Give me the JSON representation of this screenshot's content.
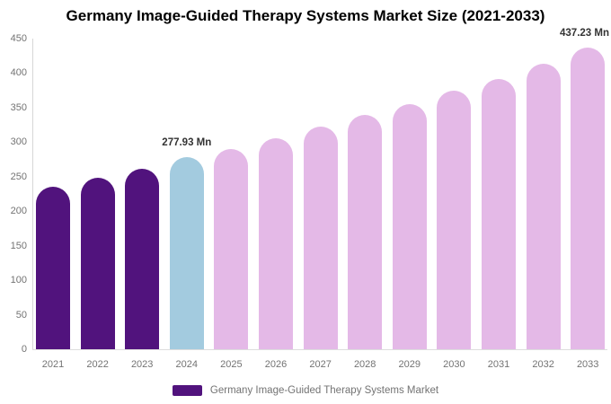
{
  "page": {
    "background_color": "#ffffff"
  },
  "chart_data": {
    "type": "bar",
    "title": "Germany Image-Guided Therapy Systems Market Size (2021-2033)",
    "categories": [
      "2021",
      "2022",
      "2023",
      "2024",
      "2025",
      "2026",
      "2027",
      "2028",
      "2029",
      "2030",
      "2031",
      "2032",
      "2033"
    ],
    "series": [
      {
        "name": "Germany Image-Guided Therapy Systems Market",
        "values": [
          235,
          248,
          261,
          277.93,
          290,
          306,
          322,
          339,
          355,
          374,
          392,
          413,
          437.23
        ]
      }
    ],
    "unit": "Mn",
    "xlabel": "",
    "ylabel": "",
    "ylim": [
      0,
      450
    ],
    "ytick_step": 50,
    "yticks": [
      "0",
      "50",
      "100",
      "150",
      "200",
      "250",
      "300",
      "350",
      "400",
      "450"
    ],
    "grid": false,
    "legend_position": "bottom",
    "bar_color_keys": [
      "historical",
      "historical",
      "historical",
      "current",
      "forecast",
      "forecast",
      "forecast",
      "forecast",
      "forecast",
      "forecast",
      "forecast",
      "forecast",
      "forecast"
    ],
    "colors": {
      "historical": "#51137D",
      "current": "#A3CBDF",
      "forecast": "#E4B9E7",
      "axis_line": "#D6D6D6",
      "tick_text": "#737373",
      "title_text": "#000000",
      "data_label_text": "#333333"
    },
    "annotations": [
      {
        "category": "2024",
        "text": "277.93 Mn"
      },
      {
        "category": "2033",
        "text": "437.23 Mn"
      }
    ]
  },
  "legend": {
    "label": "Germany Image-Guided Therapy Systems Market",
    "swatch_color": "#51137D"
  }
}
